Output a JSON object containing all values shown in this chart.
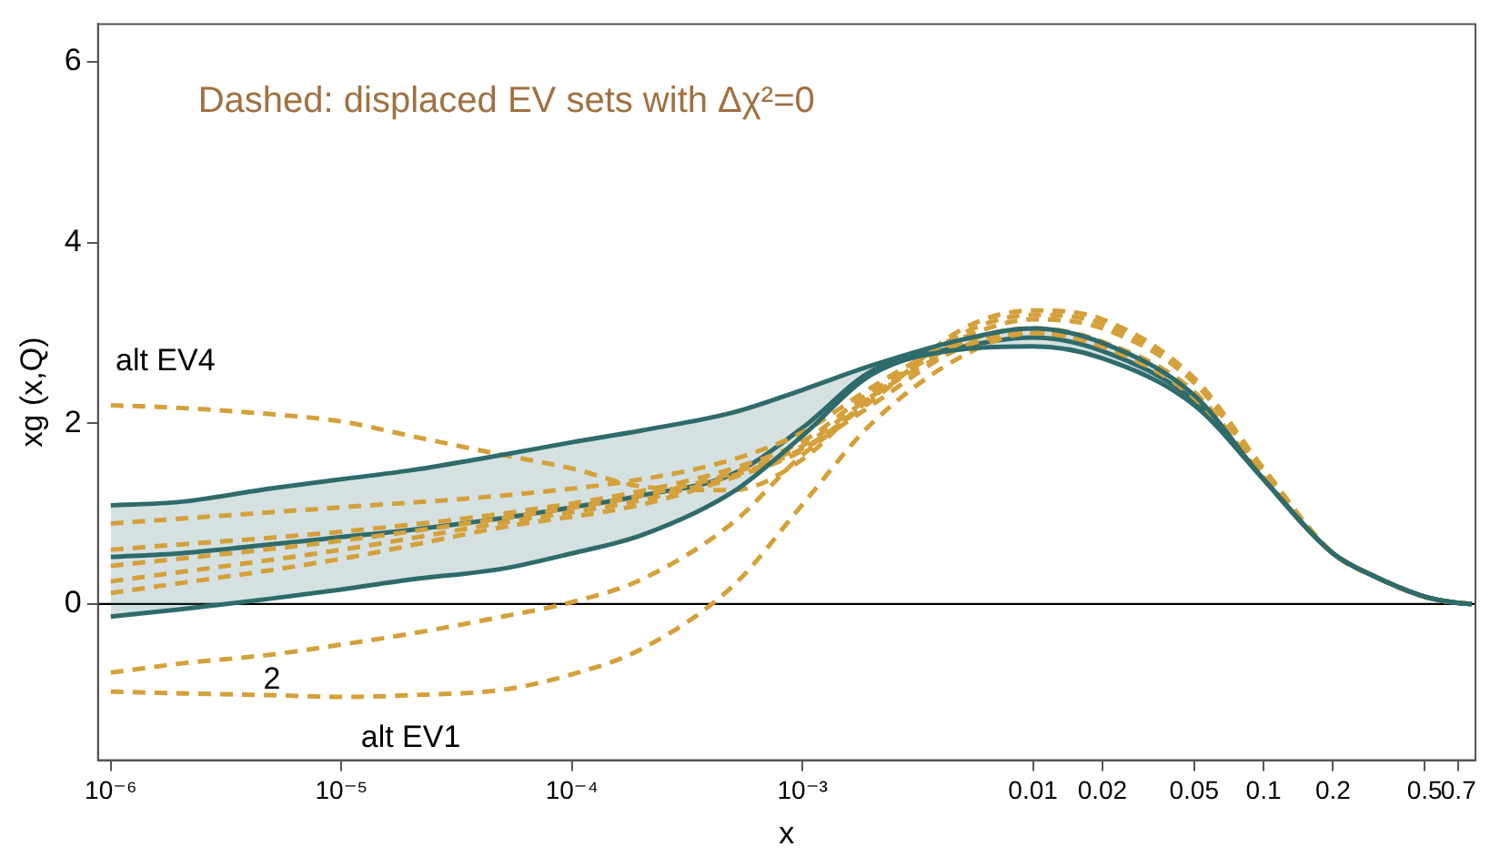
{
  "chart_data": {
    "type": "line",
    "xlabel": "x",
    "ylabel": "xg (x,Q)",
    "x": [
      1e-06,
      2e-06,
      5e-06,
      1e-05,
      2e-05,
      5e-05,
      0.0001,
      0.0002,
      0.0005,
      0.001,
      0.002,
      0.005,
      0.01,
      0.02,
      0.05,
      0.1,
      0.2,
      0.3,
      0.5,
      0.7,
      0.8
    ],
    "series": [
      {
        "color": "#2e6b6b",
        "values": [
          0.52,
          0.56,
          0.66,
          0.74,
          0.82,
          0.95,
          1.07,
          1.2,
          1.44,
          1.95,
          2.58,
          2.85,
          2.95,
          2.8,
          2.25,
          1.38,
          0.56,
          0.31,
          0.08,
          0.01,
          0
        ],
        "lower": [
          -0.14,
          -0.06,
          0.06,
          0.16,
          0.27,
          0.39,
          0.56,
          0.76,
          1.24,
          1.86,
          2.54,
          2.82,
          2.85,
          2.72,
          2.2,
          1.38,
          0.56,
          0.31,
          0.08,
          0.01,
          0
        ],
        "upper": [
          1.09,
          1.13,
          1.28,
          1.38,
          1.48,
          1.65,
          1.79,
          1.92,
          2.12,
          2.37,
          2.64,
          2.93,
          3.05,
          2.89,
          2.31,
          1.38,
          0.56,
          0.31,
          0.08,
          0.01,
          0
        ]
      },
      {
        "color": "#2e6b6b",
        "values": [
          1.09,
          1.13,
          1.28,
          1.38,
          1.48,
          1.65,
          1.79,
          1.92,
          2.12,
          2.37,
          2.64,
          2.93,
          3.05,
          2.89,
          2.31,
          1.38,
          0.56,
          0.31,
          0.08,
          0.01,
          0
        ]
      },
      {
        "color": "#2e6b6b",
        "values": [
          -0.14,
          -0.06,
          0.06,
          0.16,
          0.27,
          0.39,
          0.56,
          0.76,
          1.24,
          1.86,
          2.54,
          2.82,
          2.85,
          2.72,
          2.2,
          1.38,
          0.56,
          0.31,
          0.08,
          0.01,
          0
        ]
      },
      {
        "name": "alt EV4",
        "color": "#d4a03a",
        "line_style": "dashed",
        "values": [
          2.2,
          2.17,
          2.1,
          2.02,
          1.86,
          1.65,
          1.5,
          1.3,
          1.26,
          1.6,
          2.3,
          2.9,
          3.05,
          2.9,
          2.3,
          1.4,
          0.56,
          0.31,
          0.08,
          0.01,
          0
        ]
      },
      {
        "name": "2",
        "color": "#d4a03a",
        "line_style": "dashed",
        "values": [
          -0.76,
          -0.66,
          -0.56,
          -0.45,
          -0.33,
          -0.14,
          0.02,
          0.27,
          0.9,
          1.65,
          2.2,
          2.85,
          3.0,
          2.85,
          2.28,
          1.38,
          0.56,
          0.31,
          0.08,
          0.01,
          0
        ]
      },
      {
        "name": "alt EV1",
        "color": "#d4a03a",
        "line_style": "dashed",
        "values": [
          -0.97,
          -0.99,
          -1.01,
          -1.03,
          -1.01,
          -0.95,
          -0.78,
          -0.5,
          0.2,
          1.1,
          2.0,
          2.75,
          3.0,
          2.88,
          2.3,
          1.4,
          0.56,
          0.31,
          0.08,
          0.01,
          0
        ]
      },
      {
        "color": "#d4a03a",
        "line_style": "dashed",
        "x": [
          1e-06,
          1e-05,
          5e-05,
          0.0002,
          0.0005,
          0.001,
          0.002,
          0.005,
          0.01,
          0.02,
          0.05,
          0.1,
          0.2,
          0.3,
          0.5,
          0.7,
          0.8
        ],
        "values": [
          0.89,
          1.07,
          1.2,
          1.38,
          1.6,
          1.9,
          2.4,
          2.95,
          3.15,
          3.05,
          2.45,
          1.45,
          0.56,
          0.31,
          0.08,
          0.01,
          0
        ]
      },
      {
        "color": "#d4a03a",
        "line_style": "dashed",
        "x": [
          1e-06,
          1e-05,
          5e-05,
          0.0002,
          0.0005,
          0.001,
          0.002,
          0.005,
          0.01,
          0.02,
          0.05,
          0.1,
          0.2,
          0.3,
          0.5,
          0.7,
          0.8
        ],
        "values": [
          0.6,
          0.8,
          1.0,
          1.25,
          1.5,
          1.8,
          2.35,
          2.9,
          3.05,
          2.9,
          2.35,
          1.4,
          0.56,
          0.31,
          0.08,
          0.01,
          0
        ]
      },
      {
        "color": "#d4a03a",
        "line_style": "dashed",
        "x": [
          1e-06,
          1e-05,
          5e-05,
          0.0002,
          0.0005,
          0.001,
          0.002,
          0.005,
          0.01,
          0.02,
          0.05,
          0.1,
          0.2,
          0.3,
          0.5,
          0.7,
          0.8
        ],
        "values": [
          0.42,
          0.7,
          0.95,
          1.2,
          1.45,
          1.75,
          2.3,
          2.85,
          3.0,
          2.85,
          2.3,
          1.38,
          0.56,
          0.31,
          0.08,
          0.01,
          0
        ]
      },
      {
        "color": "#d4a03a",
        "line_style": "dashed",
        "x": [
          1e-06,
          1e-05,
          5e-05,
          0.0002,
          0.0005,
          0.001,
          0.002,
          0.005,
          0.01,
          0.02,
          0.05,
          0.1,
          0.2,
          0.3,
          0.5,
          0.7,
          0.8
        ],
        "values": [
          0.25,
          0.6,
          0.9,
          1.15,
          1.42,
          1.72,
          2.25,
          3.05,
          3.25,
          3.15,
          2.5,
          1.5,
          0.56,
          0.31,
          0.08,
          0.01,
          0
        ]
      },
      {
        "color": "#d4a03a",
        "line_style": "dashed",
        "x": [
          1e-06,
          1e-05,
          5e-05,
          0.0002,
          0.0005,
          0.001,
          0.002,
          0.005,
          0.01,
          0.02,
          0.05,
          0.1,
          0.2,
          0.3,
          0.5,
          0.7,
          0.8
        ],
        "values": [
          0.12,
          0.5,
          0.85,
          1.1,
          1.4,
          1.7,
          2.28,
          3.0,
          3.2,
          3.1,
          2.45,
          1.47,
          0.56,
          0.31,
          0.08,
          0.01,
          0
        ]
      }
    ],
    "xlim": [
      8.8e-07,
      0.83
    ],
    "xticks": [
      {
        "value": 1e-06,
        "label": "10⁻⁶"
      },
      {
        "value": 1e-05,
        "label": "10⁻⁵"
      },
      {
        "value": 0.0001,
        "label": "10⁻⁴"
      },
      {
        "value": 0.001,
        "label": "10⁻³"
      },
      0.01,
      0.02,
      0.05,
      0.1,
      0.2,
      0.5,
      0.7
    ],
    "ylim": [
      -1.73,
      6.42
    ],
    "yticks": [
      0,
      2,
      4,
      6
    ],
    "log": "x",
    "ref_lines": [
      {
        "axis": "y",
        "value": 0,
        "color": "#000000"
      }
    ],
    "annotations": [
      "Dashed: displaced EV sets with Δχ²=0"
    ],
    "grid": false,
    "legend": false
  }
}
